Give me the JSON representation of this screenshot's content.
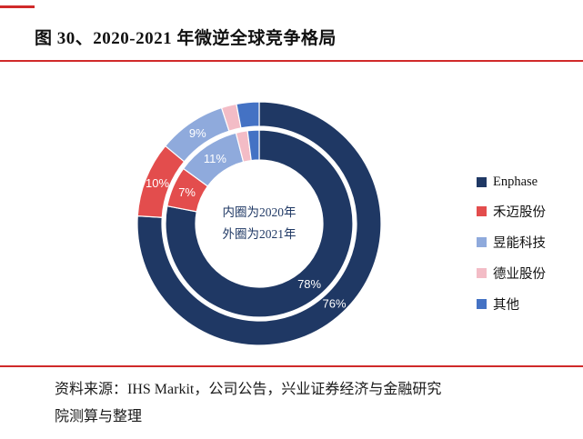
{
  "page": {
    "title": "图 30、2020-2021 年微逆全球竞争格局",
    "source_line1": "资料来源：IHS Markit，公司公告，兴业证券经济与金融研究",
    "source_line2": "院测算与整理",
    "accent_red": "#d02a2a"
  },
  "chart_data": {
    "type": "pie",
    "subtype": "double-ring-donut",
    "title": "2020-2021 年微逆全球竞争格局",
    "center_note_line1": "内圈为2020年",
    "center_note_line2": "外圈为2021年",
    "categories": [
      "Enphase",
      "禾迈股份",
      "昱能科技",
      "德业股份",
      "其他"
    ],
    "colors": [
      "#1f3864",
      "#e34d4d",
      "#8faadc",
      "#f3bcc6",
      "#4472c4"
    ],
    "series": [
      {
        "name": "2020",
        "ring": "inner",
        "values": [
          78,
          7,
          11,
          2,
          2
        ],
        "labels": [
          "78%",
          "7%",
          "11%",
          "",
          ""
        ]
      },
      {
        "name": "2021",
        "ring": "outer",
        "values": [
          76,
          10,
          9,
          2,
          3
        ],
        "labels": [
          "76%",
          "10%",
          "9%",
          "",
          ""
        ]
      }
    ],
    "legend": [
      {
        "label": "Enphase",
        "color": "#1f3864"
      },
      {
        "label": "禾迈股份",
        "color": "#e34d4d"
      },
      {
        "label": "昱能科技",
        "color": "#8faadc"
      },
      {
        "label": "德业股份",
        "color": "#f3bcc6"
      },
      {
        "label": "其他",
        "color": "#4472c4"
      }
    ],
    "legend_position": "right",
    "start_angle_deg": 0,
    "direction": "clockwise"
  }
}
